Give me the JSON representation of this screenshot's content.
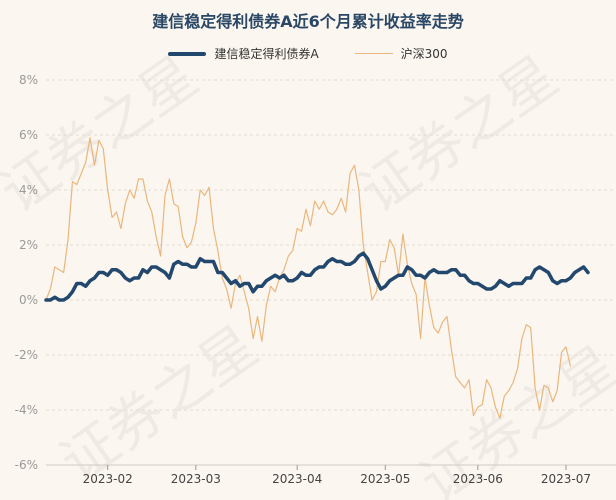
{
  "chart_data": {
    "type": "line",
    "title": "建信稳定得利债券A近6个月累计收益率走势",
    "xlabel": "",
    "ylabel": "",
    "ylim": [
      -6,
      8
    ],
    "y_ticks": [
      "8%",
      "6%",
      "4%",
      "2%",
      "0%",
      "-2%",
      "-4%",
      "-6%"
    ],
    "y_tick_values": [
      8,
      6,
      4,
      2,
      0,
      -2,
      -4,
      -6
    ],
    "x_ticks": [
      "2023-02",
      "2023-03",
      "2023-04",
      "2023-05",
      "2023-06",
      "2023-07"
    ],
    "x_tick_indices": [
      14,
      34,
      57,
      77,
      98,
      118
    ],
    "grid": true,
    "legend_position": "top-center",
    "colors": {
      "fund": "#23486e",
      "index": "#e9b77e"
    },
    "series": [
      {
        "name": "建信稳定得利债券A",
        "values": [
          0.0,
          0.0,
          0.1,
          0.0,
          0.0,
          0.1,
          0.3,
          0.6,
          0.6,
          0.5,
          0.7,
          0.8,
          1.0,
          1.0,
          0.9,
          1.1,
          1.1,
          1.0,
          0.8,
          0.7,
          0.8,
          0.8,
          1.1,
          1.0,
          1.2,
          1.2,
          1.1,
          1.0,
          0.8,
          1.3,
          1.4,
          1.3,
          1.3,
          1.2,
          1.2,
          1.5,
          1.4,
          1.4,
          1.4,
          1.0,
          1.0,
          0.8,
          0.6,
          0.7,
          0.5,
          0.6,
          0.6,
          0.3,
          0.5,
          0.5,
          0.7,
          0.8,
          0.9,
          0.8,
          0.9,
          0.7,
          0.7,
          0.8,
          1.0,
          0.9,
          0.9,
          1.1,
          1.2,
          1.2,
          1.4,
          1.5,
          1.4,
          1.4,
          1.3,
          1.3,
          1.4,
          1.6,
          1.7,
          1.5,
          1.1,
          0.7,
          0.4,
          0.5,
          0.7,
          0.8,
          0.9,
          0.9,
          1.2,
          1.1,
          0.9,
          0.9,
          0.8,
          1.0,
          1.1,
          1.0,
          1.0,
          1.0,
          1.1,
          1.1,
          0.9,
          0.9,
          0.7,
          0.6,
          0.6,
          0.5,
          0.4,
          0.4,
          0.5,
          0.7,
          0.6,
          0.5,
          0.6,
          0.6,
          0.6,
          0.8,
          0.8,
          1.1,
          1.2,
          1.1,
          1.0,
          0.7,
          0.6,
          0.7,
          0.7,
          0.8,
          1.0,
          1.1,
          1.2,
          1.0
        ],
        "color": "#23486e"
      },
      {
        "name": "沪深300",
        "values": [
          0.0,
          0.4,
          1.2,
          1.1,
          1.0,
          2.2,
          4.3,
          4.2,
          4.6,
          5.0,
          5.9,
          4.9,
          5.8,
          5.5,
          4.0,
          3.0,
          3.2,
          2.6,
          3.5,
          4.0,
          3.7,
          4.4,
          4.4,
          3.6,
          3.2,
          2.3,
          1.6,
          3.8,
          4.4,
          3.5,
          3.4,
          2.3,
          1.9,
          2.1,
          2.8,
          4.0,
          3.8,
          4.1,
          2.6,
          1.8,
          0.8,
          0.4,
          -0.3,
          0.6,
          0.9,
          0.3,
          -0.3,
          -1.4,
          -0.6,
          -1.5,
          -0.2,
          0.5,
          0.3,
          0.8,
          1.1,
          1.6,
          1.8,
          2.6,
          2.5,
          3.3,
          2.7,
          3.6,
          3.3,
          3.6,
          3.2,
          3.1,
          3.3,
          3.7,
          3.2,
          4.6,
          4.9,
          4.0,
          2.0,
          1.0,
          0.0,
          0.3,
          1.4,
          1.4,
          2.2,
          1.9,
          0.9,
          2.4,
          1.3,
          0.6,
          0.2,
          -1.4,
          0.8,
          -0.2,
          -1.0,
          -1.2,
          -0.8,
          -0.6,
          -1.8,
          -2.8,
          -3.0,
          -3.2,
          -2.9,
          -4.2,
          -3.9,
          -3.8,
          -2.9,
          -3.2,
          -3.9,
          -4.3,
          -3.5,
          -3.3,
          -3.0,
          -2.5,
          -1.4,
          -0.9,
          -1.0,
          -3.2,
          -4.0,
          -3.1,
          -3.2,
          -3.7,
          -3.3,
          -1.9,
          -1.7,
          -2.4
        ],
        "color": "#e9b77e"
      }
    ]
  },
  "watermark": {
    "text": "证券之星"
  }
}
